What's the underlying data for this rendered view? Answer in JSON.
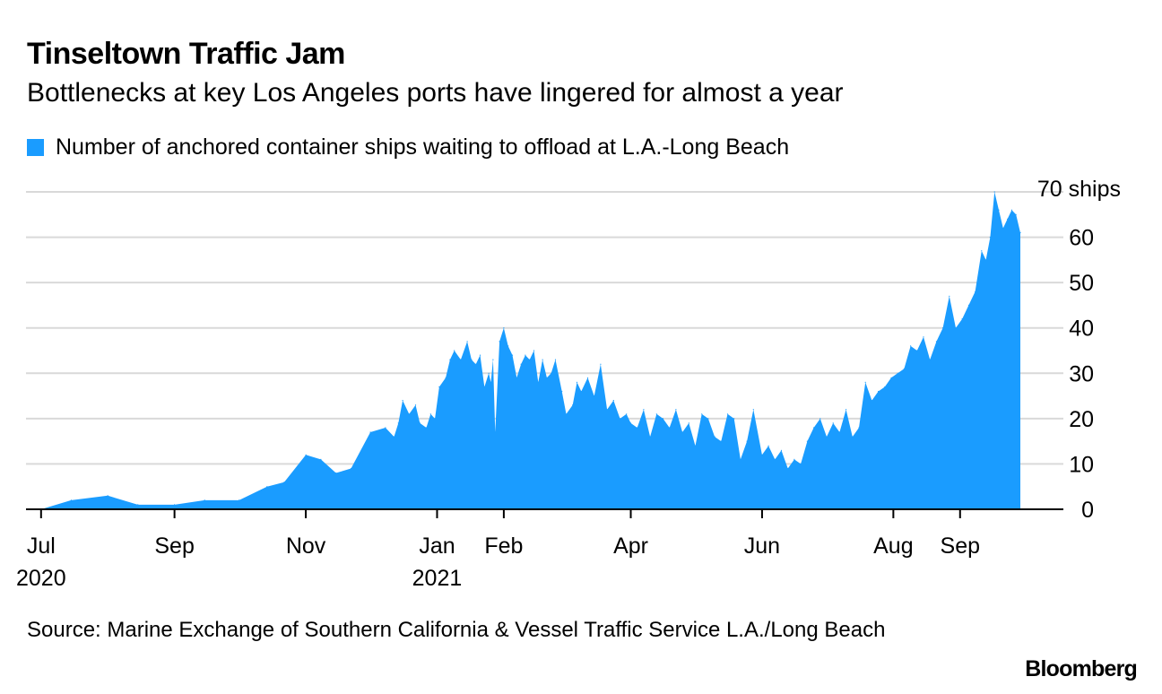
{
  "header": {
    "title": "Tinseltown Traffic Jam",
    "subtitle": "Bottlenecks at key Los Angeles ports have lingered for almost a year"
  },
  "footer": {
    "source": "Source: Marine Exchange of Southern California & Vessel Traffic Service L.A./Long Beach",
    "brand": "Bloomberg"
  },
  "colors": {
    "series": "#1a9cff",
    "grid": "#d9d9d9",
    "axis": "#000000"
  },
  "chart_data": {
    "type": "area",
    "title": "Tinseltown Traffic Jam",
    "subtitle": "Bottlenecks at key Los Angeles ports have lingered for almost a year",
    "xlabel": "",
    "ylabel": "",
    "ylim": [
      0,
      70
    ],
    "yticks": [
      0,
      10,
      20,
      30,
      40,
      50,
      60
    ],
    "ytick_labels": [
      "0",
      "10",
      "20",
      "30",
      "40",
      "50",
      "60"
    ],
    "top_label": "70 ships",
    "grid": true,
    "legend_position": "top-left",
    "xlim": [
      "2020-06-24",
      "2021-10-19"
    ],
    "xticks": [
      {
        "date": "2020-07-01",
        "label": "Jul",
        "year": "2020"
      },
      {
        "date": "2020-09-01",
        "label": "Sep",
        "year": ""
      },
      {
        "date": "2020-11-01",
        "label": "Nov",
        "year": ""
      },
      {
        "date": "2021-01-01",
        "label": "Jan",
        "year": "2021"
      },
      {
        "date": "2021-02-01",
        "label": "Feb",
        "year": ""
      },
      {
        "date": "2021-04-01",
        "label": "Apr",
        "year": ""
      },
      {
        "date": "2021-06-01",
        "label": "Jun",
        "year": ""
      },
      {
        "date": "2021-08-01",
        "label": "Aug",
        "year": ""
      },
      {
        "date": "2021-09-01",
        "label": "Sep",
        "year": ""
      }
    ],
    "series": [
      {
        "name": "Number of anchored container ships waiting to offload at L.A.-Long Beach",
        "x": [
          "2020-07-01",
          "2020-07-15",
          "2020-08-01",
          "2020-08-15",
          "2020-09-01",
          "2020-09-15",
          "2020-10-01",
          "2020-10-14",
          "2020-10-22",
          "2020-11-01",
          "2020-11-08",
          "2020-11-15",
          "2020-11-22",
          "2020-12-01",
          "2020-12-08",
          "2020-12-12",
          "2020-12-14",
          "2020-12-16",
          "2020-12-19",
          "2020-12-22",
          "2020-12-24",
          "2020-12-27",
          "2020-12-29",
          "2020-12-31",
          "2021-01-02",
          "2021-01-05",
          "2021-01-07",
          "2021-01-09",
          "2021-01-12",
          "2021-01-15",
          "2021-01-17",
          "2021-01-19",
          "2021-01-21",
          "2021-01-23",
          "2021-01-25",
          "2021-01-26",
          "2021-01-27",
          "2021-01-28",
          "2021-01-30",
          "2021-02-01",
          "2021-02-03",
          "2021-02-05",
          "2021-02-07",
          "2021-02-09",
          "2021-02-11",
          "2021-02-13",
          "2021-02-15",
          "2021-02-17",
          "2021-02-19",
          "2021-02-21",
          "2021-02-23",
          "2021-02-25",
          "2021-02-28",
          "2021-03-02",
          "2021-03-05",
          "2021-03-07",
          "2021-03-09",
          "2021-03-12",
          "2021-03-15",
          "2021-03-18",
          "2021-03-21",
          "2021-03-24",
          "2021-03-27",
          "2021-03-30",
          "2021-04-01",
          "2021-04-04",
          "2021-04-07",
          "2021-04-10",
          "2021-04-13",
          "2021-04-16",
          "2021-04-19",
          "2021-04-22",
          "2021-04-25",
          "2021-04-28",
          "2021-05-01",
          "2021-05-04",
          "2021-05-07",
          "2021-05-10",
          "2021-05-13",
          "2021-05-16",
          "2021-05-19",
          "2021-05-22",
          "2021-05-25",
          "2021-05-28",
          "2021-06-01",
          "2021-06-04",
          "2021-06-07",
          "2021-06-10",
          "2021-06-13",
          "2021-06-16",
          "2021-06-19",
          "2021-06-22",
          "2021-06-25",
          "2021-06-28",
          "2021-07-01",
          "2021-07-04",
          "2021-07-07",
          "2021-07-10",
          "2021-07-13",
          "2021-07-16",
          "2021-07-19",
          "2021-07-22",
          "2021-07-25",
          "2021-07-28",
          "2021-07-31",
          "2021-08-03",
          "2021-08-06",
          "2021-08-09",
          "2021-08-12",
          "2021-08-15",
          "2021-08-18",
          "2021-08-21",
          "2021-08-24",
          "2021-08-27",
          "2021-08-30",
          "2021-09-02",
          "2021-09-05",
          "2021-09-08",
          "2021-09-11",
          "2021-09-13",
          "2021-09-15",
          "2021-09-17",
          "2021-09-19",
          "2021-09-21",
          "2021-09-23",
          "2021-09-25",
          "2021-09-27",
          "2021-09-29"
        ],
        "values": [
          0,
          2,
          3,
          1,
          1,
          2,
          2,
          5,
          6,
          12,
          11,
          8,
          9,
          17,
          18,
          16,
          19,
          24,
          21,
          23,
          19,
          18,
          21,
          20,
          27,
          29,
          33,
          35,
          33,
          37,
          33,
          32,
          34,
          27,
          30,
          28,
          33,
          17,
          37,
          40,
          36,
          34,
          29,
          32,
          34,
          33,
          35,
          28,
          33,
          29,
          30,
          33,
          26,
          21,
          23,
          28,
          26,
          29,
          25,
          32,
          22,
          24,
          20,
          21,
          19,
          18,
          22,
          16,
          21,
          20,
          18,
          22,
          17,
          19,
          14,
          21,
          20,
          16,
          15,
          21,
          20,
          11,
          15,
          22,
          12,
          14,
          11,
          13,
          9,
          11,
          10,
          15,
          18,
          20,
          16,
          19,
          17,
          22,
          16,
          18,
          28,
          24,
          26,
          27,
          29,
          30,
          31,
          36,
          35,
          38,
          33,
          37,
          40,
          47,
          40,
          42,
          45,
          48,
          57,
          55,
          60,
          70,
          66,
          62,
          64,
          66,
          65,
          61
        ]
      }
    ]
  }
}
